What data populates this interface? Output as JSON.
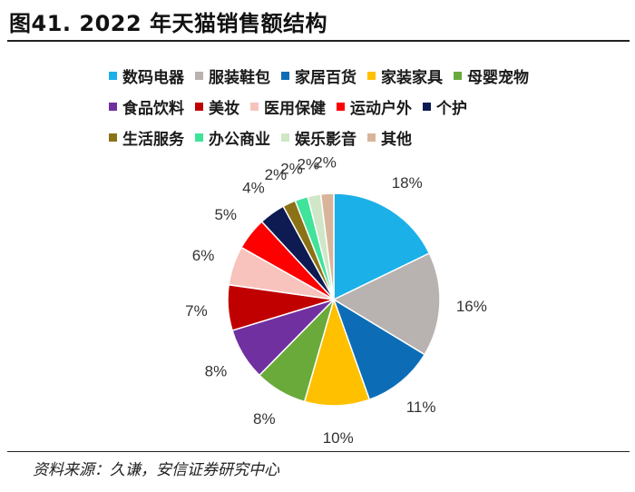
{
  "header": {
    "title": "图41. 2022 年天猫销售额结构"
  },
  "footer": {
    "source": "资料来源：久谦，安信证券研究中心"
  },
  "chart_data": {
    "type": "pie",
    "title": "",
    "legend_position": "top",
    "start_angle_deg": 0,
    "direction": "clockwise",
    "slices": [
      {
        "label": "数码电器",
        "value": 18,
        "value_label": "18%",
        "color": "#1BB0E8"
      },
      {
        "label": "服装鞋包",
        "value": 16,
        "value_label": "16%",
        "color": "#B8B3B0"
      },
      {
        "label": "家居百货",
        "value": 11,
        "value_label": "11%",
        "color": "#0C6DB6"
      },
      {
        "label": "家装家具",
        "value": 10,
        "value_label": "10%",
        "color": "#FFC000"
      },
      {
        "label": "母婴宠物",
        "value": 8,
        "value_label": "8%",
        "color": "#6AAA3A"
      },
      {
        "label": "食品饮料",
        "value": 8,
        "value_label": "8%",
        "color": "#7030A0"
      },
      {
        "label": "美妆",
        "value": 7,
        "value_label": "7%",
        "color": "#C00000"
      },
      {
        "label": "医用保健",
        "value": 6,
        "value_label": "6%",
        "color": "#F7C3BC"
      },
      {
        "label": "运动户外",
        "value": 5,
        "value_label": "5%",
        "color": "#FF0000"
      },
      {
        "label": "个护",
        "value": 4,
        "value_label": "4%",
        "color": "#0D1B52"
      },
      {
        "label": "生活服务",
        "value": 2,
        "value_label": "2%",
        "color": "#8B7216"
      },
      {
        "label": "办公商业",
        "value": 2,
        "value_label": "2%",
        "color": "#3FE39A"
      },
      {
        "label": "娱乐影音",
        "value": 2,
        "value_label": "2%",
        "color": "#CFE6C7"
      },
      {
        "label": "其他",
        "value": 2,
        "value_label": "2%",
        "color": "#D8B59A"
      }
    ]
  }
}
